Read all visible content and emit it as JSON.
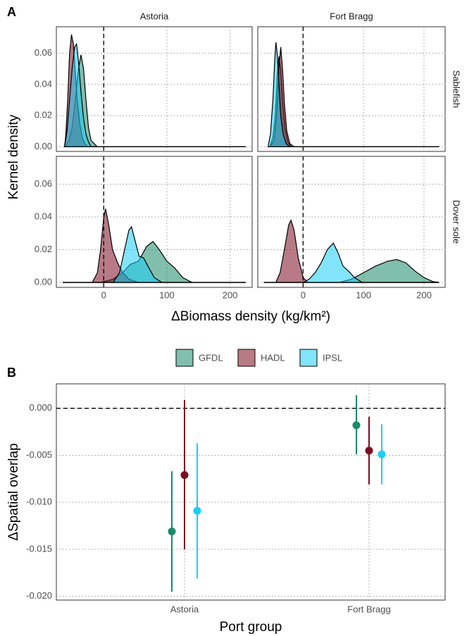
{
  "chart_data": [
    {
      "type": "density",
      "panel_label": "A",
      "ylabel": "Kernel density",
      "xlabel": "ΔBiomass density (kg/km²)",
      "columns": [
        "Astoria",
        "Fort Bragg"
      ],
      "legend": [
        {
          "name": "GFDL",
          "color": "#1a8a6a"
        },
        {
          "name": "HADL",
          "color": "#7b0d22"
        },
        {
          "name": "IPSL",
          "color": "#1ccdf5"
        }
      ],
      "xlim": [
        -75,
        235
      ],
      "xticks": [
        0,
        100,
        200
      ],
      "ylim": [
        -0.003,
        0.077
      ],
      "yticks": [
        {
          "value": 0,
          "label": "0.00"
        },
        0.02,
        0.04,
        0.06
      ],
      "vline": 0,
      "grid": true,
      "rows": [
        {
          "name": "Sablefish",
          "panels": [
            {
              "curves": [
                {
                  "x": [
                    -62,
                    -55,
                    -50,
                    -45,
                    -40,
                    -36,
                    -32,
                    -28,
                    -24,
                    -20,
                    -15,
                    -10,
                    225
                  ],
                  "y": [
                    0,
                    0.004,
                    0.012,
                    0.03,
                    0.05,
                    0.059,
                    0.05,
                    0.03,
                    0.012,
                    0.004,
                    0.002,
                    0,
                    0
                  ]
                },
                {
                  "x": [
                    -62,
                    -60,
                    -57,
                    -54,
                    -51,
                    -48,
                    -45,
                    -42,
                    -38,
                    -34,
                    -30,
                    -25,
                    225
                  ],
                  "y": [
                    0,
                    0.008,
                    0.03,
                    0.06,
                    0.072,
                    0.066,
                    0.048,
                    0.03,
                    0.015,
                    0.006,
                    0.002,
                    0,
                    0
                  ]
                },
                {
                  "x": [
                    -62,
                    -58,
                    -54,
                    -50,
                    -46,
                    -43,
                    -40,
                    -36,
                    -32,
                    -28,
                    -24,
                    -20,
                    225
                  ],
                  "y": [
                    0,
                    0.01,
                    0.03,
                    0.05,
                    0.064,
                    0.066,
                    0.055,
                    0.035,
                    0.018,
                    0.008,
                    0.003,
                    0,
                    0
                  ]
                }
              ]
            },
            {
              "curves": [
                {
                  "x": [
                    -55,
                    -50,
                    -46,
                    -43,
                    -40,
                    -37,
                    -34,
                    -30,
                    -25,
                    -20,
                    225
                  ],
                  "y": [
                    0,
                    0.006,
                    0.02,
                    0.045,
                    0.058,
                    0.05,
                    0.03,
                    0.012,
                    0.003,
                    0,
                    0
                  ]
                },
                {
                  "x": [
                    -55,
                    -48,
                    -44,
                    -40,
                    -37,
                    -34,
                    -31,
                    -27,
                    -22,
                    -15,
                    225
                  ],
                  "y": [
                    0,
                    0.004,
                    0.02,
                    0.05,
                    0.064,
                    0.05,
                    0.028,
                    0.01,
                    0.002,
                    0,
                    0
                  ]
                },
                {
                  "x": [
                    -58,
                    -54,
                    -50,
                    -47,
                    -45,
                    -43,
                    -40,
                    -37,
                    -33,
                    -28,
                    -22,
                    225
                  ],
                  "y": [
                    0,
                    0.008,
                    0.03,
                    0.055,
                    0.067,
                    0.06,
                    0.04,
                    0.02,
                    0.008,
                    0.002,
                    0,
                    0
                  ]
                }
              ]
            }
          ]
        },
        {
          "name": "Dover sole",
          "panels": [
            {
              "curves": [
                {
                  "x": [
                    -65,
                    -5,
                    15,
                    30,
                    42,
                    55,
                    68,
                    78,
                    88,
                    100,
                    112,
                    125,
                    140,
                    225
                  ],
                  "y": [
                    0,
                    0,
                    0.002,
                    0.006,
                    0.011,
                    0.013,
                    0.022,
                    0.025,
                    0.02,
                    0.013,
                    0.009,
                    0.003,
                    0,
                    0
                  ]
                },
                {
                  "x": [
                    -65,
                    -18,
                    -10,
                    -5,
                    0,
                    3,
                    8,
                    14,
                    22,
                    30,
                    40,
                    55,
                    225
                  ],
                  "y": [
                    0,
                    0,
                    0.006,
                    0.02,
                    0.04,
                    0.045,
                    0.035,
                    0.02,
                    0.012,
                    0.006,
                    0.002,
                    0,
                    0
                  ]
                },
                {
                  "x": [
                    -65,
                    15,
                    25,
                    33,
                    40,
                    44,
                    50,
                    56,
                    63,
                    70,
                    80,
                    92,
                    225
                  ],
                  "y": [
                    0,
                    0,
                    0.006,
                    0.02,
                    0.032,
                    0.034,
                    0.025,
                    0.016,
                    0.015,
                    0.01,
                    0.003,
                    0,
                    0
                  ]
                }
              ]
            },
            {
              "curves": [
                {
                  "x": [
                    -65,
                    60,
                    80,
                    100,
                    120,
                    140,
                    155,
                    170,
                    185,
                    200,
                    215,
                    225
                  ],
                  "y": [
                    0,
                    0,
                    0.002,
                    0.006,
                    0.01,
                    0.013,
                    0.014,
                    0.012,
                    0.007,
                    0.003,
                    0.0005,
                    0
                  ]
                },
                {
                  "x": [
                    -65,
                    -45,
                    -38,
                    -30,
                    -24,
                    -20,
                    -15,
                    -8,
                    0,
                    8,
                    225
                  ],
                  "y": [
                    0,
                    0,
                    0.006,
                    0.022,
                    0.035,
                    0.038,
                    0.032,
                    0.015,
                    0.003,
                    0,
                    0
                  ]
                },
                {
                  "x": [
                    -65,
                    0,
                    10,
                    20,
                    30,
                    40,
                    50,
                    58,
                    66,
                    75,
                    85,
                    98,
                    225
                  ],
                  "y": [
                    0,
                    0,
                    0.002,
                    0.006,
                    0.012,
                    0.02,
                    0.024,
                    0.018,
                    0.01,
                    0.007,
                    0.003,
                    0,
                    0
                  ]
                }
              ]
            }
          ]
        }
      ]
    },
    {
      "type": "pointrange",
      "panel_label": "B",
      "ylabel": "ΔSpatial overlap",
      "xlabel": "Port group",
      "categories": [
        "Astoria",
        "Fort Bragg"
      ],
      "series": [
        {
          "color": "#1a8a6a",
          "values": [
            -0.0131,
            -0.0018
          ],
          "lower": [
            -0.0195,
            -0.0049
          ],
          "upper": [
            -0.0067,
            0.0014
          ]
        },
        {
          "color": "#7b0d22",
          "values": [
            -0.0071,
            -0.0045
          ],
          "lower": [
            -0.015,
            -0.0081
          ],
          "upper": [
            0.0009,
            -0.0009
          ]
        },
        {
          "color": "#1ccdf5",
          "values": [
            -0.0109,
            -0.0049
          ],
          "lower": [
            -0.0181,
            -0.0081
          ],
          "upper": [
            -0.0037,
            -0.0017
          ]
        }
      ],
      "ylim": [
        -0.0204,
        0.0026
      ],
      "yticks": [
        {
          "value": -0.02,
          "label": "-0.020"
        },
        -0.015,
        {
          "value": -0.01,
          "label": "-0.010"
        },
        -0.005,
        {
          "value": 0,
          "label": "0.000"
        }
      ],
      "hline": 0,
      "grid": true
    }
  ]
}
